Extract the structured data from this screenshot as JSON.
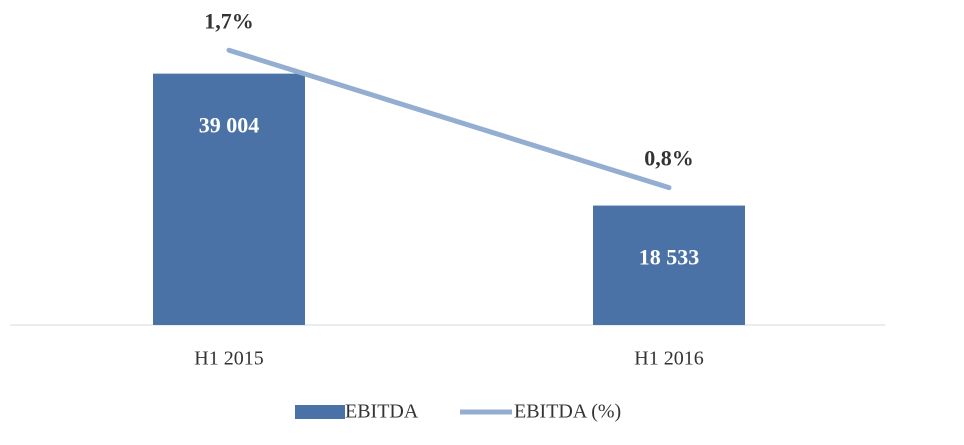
{
  "chart_data": {
    "type": "bar_line",
    "categories": [
      "H1 2015",
      "H1 2016"
    ],
    "series": [
      {
        "name": "EBITDA",
        "type": "bar",
        "color": "#4a72a6",
        "values": [
          39004,
          18533
        ],
        "value_labels": [
          "39 004",
          "18 533"
        ]
      },
      {
        "name": "EBITDA (%)",
        "type": "line",
        "axis": "y2",
        "color": "#94aed2",
        "values": [
          1.7,
          0.8
        ],
        "value_labels": [
          "1,7%",
          "0,8%"
        ]
      }
    ],
    "ylim": [
      0,
      45000
    ],
    "y2lim": [
      -0.1,
      1.8
    ],
    "legend": "bottom"
  }
}
